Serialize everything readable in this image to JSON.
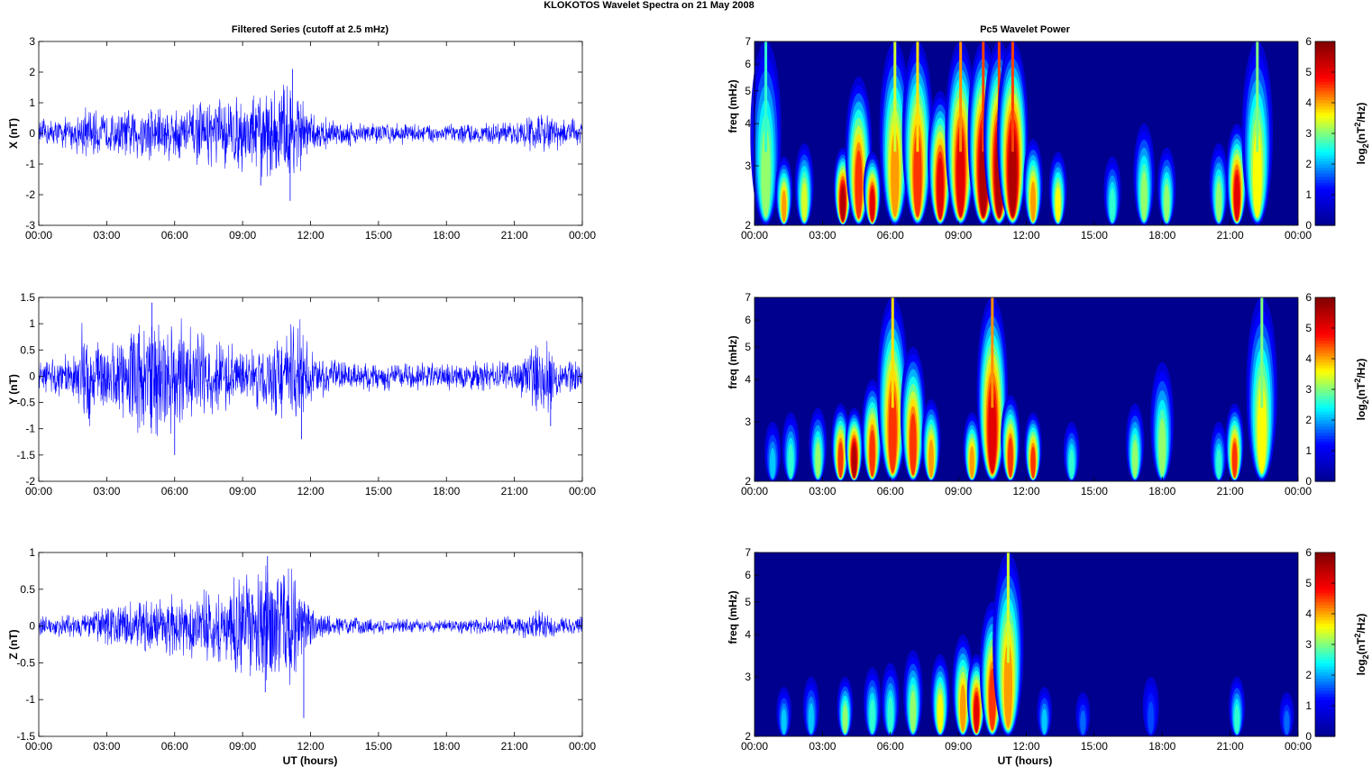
{
  "title": "KLOKOTOS Wavelet Spectra on 21 May      2008",
  "left_column": {
    "title": "Filtered Series (cutoff at 2.5 mHz)",
    "xlabel": "UT (hours)"
  },
  "right_column": {
    "title": "Pc5 Wavelet Power",
    "xlabel": "UT (hours)"
  },
  "colors": {
    "trace": "#0000ff",
    "colormap": [
      "#00008f",
      "#0000ff",
      "#00ffff",
      "#ffff00",
      "#ff0000",
      "#800000"
    ]
  },
  "chart_data": [
    {
      "type": "line",
      "panel": "X",
      "ylabel": "X (nT)",
      "ylim": [
        -3,
        3
      ],
      "yticks": [
        -3,
        -2,
        -1,
        0,
        1,
        2,
        3
      ],
      "xlim_hours": [
        0,
        24
      ],
      "xticks": [
        "00:00",
        "03:00",
        "06:00",
        "09:00",
        "12:00",
        "15:00",
        "18:00",
        "21:00",
        "00:00"
      ],
      "series": [
        {
          "values_note_hours": [
            0,
            24
          ],
          "amplitude_envelope": {
            "hours": [
              0,
              1.5,
              2,
              3,
              4,
              5,
              6,
              7,
              8,
              9,
              10,
              10.5,
              11,
              11.5,
              12,
              13,
              15,
              18,
              21,
              22,
              23,
              24
            ],
            "max_abs": [
              0.5,
              0.6,
              1.0,
              0.7,
              0.9,
              1.2,
              1.0,
              1.1,
              1.3,
              1.4,
              1.6,
              1.7,
              2.1,
              1.6,
              0.7,
              0.5,
              0.4,
              0.35,
              0.4,
              0.8,
              0.6,
              0.5
            ]
          },
          "extremes": [
            {
              "hour": 11.2,
              "value": 2.1
            },
            {
              "hour": 11.1,
              "value": -2.2
            },
            {
              "hour": 9.8,
              "value": -1.7
            }
          ]
        }
      ]
    },
    {
      "type": "line",
      "panel": "Y",
      "ylabel": "Y (nT)",
      "ylim": [
        -2,
        1.5
      ],
      "yticks": [
        -2,
        -1.5,
        -1,
        -0.5,
        0,
        0.5,
        1,
        1.5
      ],
      "xlim_hours": [
        0,
        24
      ],
      "xticks": [
        "00:00",
        "03:00",
        "06:00",
        "09:00",
        "12:00",
        "15:00",
        "18:00",
        "21:00",
        "00:00"
      ],
      "series": [
        {
          "amplitude_envelope": {
            "hours": [
              0,
              1.5,
              2,
              3,
              4,
              5,
              6,
              7,
              8,
              9,
              10,
              11,
              11.5,
              12,
              13,
              15,
              18,
              21,
              22.5,
              23,
              24
            ],
            "max_abs": [
              0.35,
              0.5,
              1.2,
              0.7,
              1.0,
              1.4,
              1.2,
              1.0,
              0.8,
              0.5,
              0.8,
              1.0,
              1.2,
              0.5,
              0.35,
              0.3,
              0.3,
              0.35,
              0.9,
              0.4,
              0.3
            ]
          },
          "extremes": [
            {
              "hour": 5.0,
              "value": 1.4
            },
            {
              "hour": 6.0,
              "value": -1.5
            },
            {
              "hour": 11.6,
              "value": -1.2
            },
            {
              "hour": 22.6,
              "value": -0.95
            }
          ]
        }
      ]
    },
    {
      "type": "line",
      "panel": "Z",
      "ylabel": "Z (nT)",
      "ylim": [
        -1.5,
        1
      ],
      "yticks": [
        -1.5,
        -1,
        -0.5,
        0,
        0.5,
        1
      ],
      "xlim_hours": [
        0,
        24
      ],
      "xticks": [
        "00:00",
        "03:00",
        "06:00",
        "09:00",
        "12:00",
        "15:00",
        "18:00",
        "21:00",
        "00:00"
      ],
      "series": [
        {
          "amplitude_envelope": {
            "hours": [
              0,
              2,
              3,
              5,
              7,
              8,
              9,
              10,
              11,
              11.5,
              12,
              13,
              15,
              18,
              21,
              22,
              23,
              24
            ],
            "max_abs": [
              0.15,
              0.2,
              0.3,
              0.45,
              0.5,
              0.6,
              0.8,
              0.95,
              0.95,
              0.9,
              0.3,
              0.15,
              0.12,
              0.1,
              0.15,
              0.25,
              0.15,
              0.15
            ]
          },
          "extremes": [
            {
              "hour": 10.1,
              "value": 0.95
            },
            {
              "hour": 11.7,
              "value": -1.25
            },
            {
              "hour": 10.0,
              "value": -0.9
            }
          ]
        }
      ]
    },
    {
      "type": "heatmap",
      "panel": "X",
      "ylabel": "freq (mHz)",
      "y_scale": "log",
      "ylim_mHz": [
        2,
        7
      ],
      "yticks": [
        2,
        3,
        4,
        5,
        6,
        7
      ],
      "xlim_hours": [
        0,
        24
      ],
      "xticks": [
        "00:00",
        "03:00",
        "06:00",
        "09:00",
        "12:00",
        "15:00",
        "18:00",
        "21:00",
        "00:00"
      ],
      "colorbar": {
        "label": "log2(nT2/Hz)",
        "range": [
          0,
          6
        ],
        "ticks": [
          0,
          1,
          2,
          3,
          4,
          5,
          6
        ]
      },
      "blobs": [
        {
          "hour": 0.5,
          "fmax": 7,
          "peak": 3.5
        },
        {
          "hour": 1.3,
          "fmax": 3.2,
          "peak": 4.5
        },
        {
          "hour": 2.2,
          "fmax": 3.5,
          "peak": 3.8
        },
        {
          "hour": 3.9,
          "fmax": 3.4,
          "peak": 6
        },
        {
          "hour": 4.6,
          "fmax": 5.5,
          "peak": 5
        },
        {
          "hour": 5.2,
          "fmax": 3.3,
          "peak": 5.5
        },
        {
          "hour": 6.2,
          "fmax": 7,
          "peak": 4.5
        },
        {
          "hour": 7.2,
          "fmax": 7,
          "peak": 5
        },
        {
          "hour": 8.2,
          "fmax": 5,
          "peak": 5.5
        },
        {
          "hour": 9.1,
          "fmax": 7,
          "peak": 5.5
        },
        {
          "hour": 10.1,
          "fmax": 7,
          "peak": 6
        },
        {
          "hour": 10.8,
          "fmax": 7,
          "peak": 6
        },
        {
          "hour": 11.4,
          "fmax": 7,
          "peak": 6
        },
        {
          "hour": 12.3,
          "fmax": 3.6,
          "peak": 4.5
        },
        {
          "hour": 13.4,
          "fmax": 3.3,
          "peak": 4
        },
        {
          "hour": 15.8,
          "fmax": 3.2,
          "peak": 3
        },
        {
          "hour": 17.2,
          "fmax": 4,
          "peak": 3.5
        },
        {
          "hour": 18.2,
          "fmax": 3.4,
          "peak": 3.5
        },
        {
          "hour": 20.5,
          "fmax": 3.5,
          "peak": 3.5
        },
        {
          "hour": 21.3,
          "fmax": 4,
          "peak": 5.5
        },
        {
          "hour": 22.2,
          "fmax": 7,
          "peak": 4
        }
      ]
    },
    {
      "type": "heatmap",
      "panel": "Y",
      "ylabel": "freq (mHz)",
      "y_scale": "log",
      "ylim_mHz": [
        2,
        7
      ],
      "yticks": [
        2,
        3,
        4,
        5,
        6,
        7
      ],
      "xlim_hours": [
        0,
        24
      ],
      "xticks": [
        "00:00",
        "03:00",
        "06:00",
        "09:00",
        "12:00",
        "15:00",
        "18:00",
        "21:00",
        "00:00"
      ],
      "colorbar": {
        "label": "log2(nT2/Hz)",
        "range": [
          0,
          6
        ],
        "ticks": [
          0,
          1,
          2,
          3,
          4,
          5,
          6
        ]
      },
      "blobs": [
        {
          "hour": 0.8,
          "fmax": 3.0,
          "peak": 2.5
        },
        {
          "hour": 1.6,
          "fmax": 3.2,
          "peak": 3
        },
        {
          "hour": 2.8,
          "fmax": 3.3,
          "peak": 3.5
        },
        {
          "hour": 3.8,
          "fmax": 3.4,
          "peak": 5
        },
        {
          "hour": 4.4,
          "fmax": 3.3,
          "peak": 6
        },
        {
          "hour": 5.2,
          "fmax": 4,
          "peak": 5
        },
        {
          "hour": 6.1,
          "fmax": 7,
          "peak": 5
        },
        {
          "hour": 7.0,
          "fmax": 5,
          "peak": 5
        },
        {
          "hour": 7.8,
          "fmax": 3.5,
          "peak": 4.5
        },
        {
          "hour": 9.6,
          "fmax": 3.2,
          "peak": 4.5
        },
        {
          "hour": 10.5,
          "fmax": 7,
          "peak": 5.5
        },
        {
          "hour": 11.3,
          "fmax": 3.6,
          "peak": 5
        },
        {
          "hour": 12.3,
          "fmax": 3.2,
          "peak": 5
        },
        {
          "hour": 14.0,
          "fmax": 3.0,
          "peak": 3
        },
        {
          "hour": 16.8,
          "fmax": 3.4,
          "peak": 3.5
        },
        {
          "hour": 18.0,
          "fmax": 4.5,
          "peak": 3.5
        },
        {
          "hour": 20.5,
          "fmax": 3,
          "peak": 3
        },
        {
          "hour": 21.2,
          "fmax": 3.4,
          "peak": 5
        },
        {
          "hour": 22.4,
          "fmax": 7,
          "peak": 4
        }
      ]
    },
    {
      "type": "heatmap",
      "panel": "Z",
      "ylabel": "freq (mHz)",
      "y_scale": "log",
      "ylim_mHz": [
        2,
        7
      ],
      "yticks": [
        2,
        3,
        4,
        5,
        6,
        7
      ],
      "xlim_hours": [
        0,
        24
      ],
      "xticks": [
        "00:00",
        "03:00",
        "06:00",
        "09:00",
        "12:00",
        "15:00",
        "18:00",
        "21:00",
        "00:00"
      ],
      "colorbar": {
        "label": "log2(nT2/Hz)",
        "range": [
          0,
          6
        ],
        "ticks": [
          0,
          1,
          2,
          3,
          4,
          5,
          6
        ]
      },
      "blobs": [
        {
          "hour": 1.3,
          "fmax": 2.8,
          "peak": 2.5
        },
        {
          "hour": 2.5,
          "fmax": 3.0,
          "peak": 2.5
        },
        {
          "hour": 4.0,
          "fmax": 3.0,
          "peak": 3.5
        },
        {
          "hour": 5.2,
          "fmax": 3.2,
          "peak": 3
        },
        {
          "hour": 6.0,
          "fmax": 3.3,
          "peak": 3
        },
        {
          "hour": 7.0,
          "fmax": 3.6,
          "peak": 3.5
        },
        {
          "hour": 8.2,
          "fmax": 3.5,
          "peak": 4
        },
        {
          "hour": 9.2,
          "fmax": 4,
          "peak": 4.5
        },
        {
          "hour": 9.8,
          "fmax": 3.5,
          "peak": 5.5
        },
        {
          "hour": 10.5,
          "fmax": 5,
          "peak": 5
        },
        {
          "hour": 11.2,
          "fmax": 7,
          "peak": 4.5
        },
        {
          "hour": 12.8,
          "fmax": 2.8,
          "peak": 2.5
        },
        {
          "hour": 14.5,
          "fmax": 2.7,
          "peak": 2
        },
        {
          "hour": 17.5,
          "fmax": 3.0,
          "peak": 1.8
        },
        {
          "hour": 21.3,
          "fmax": 3.0,
          "peak": 3
        },
        {
          "hour": 23.5,
          "fmax": 2.7,
          "peak": 2
        }
      ]
    }
  ]
}
